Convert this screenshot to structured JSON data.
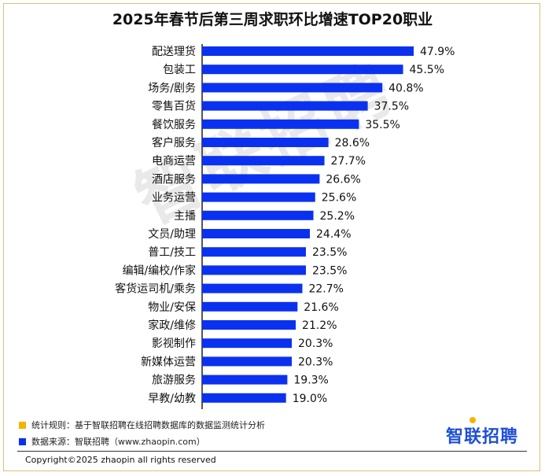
{
  "chart_data": {
    "type": "bar",
    "orientation": "horizontal",
    "title": "2025年春节后第三周求职环比增速TOP20职业",
    "categories": [
      "配送理货",
      "包装工",
      "场务/剧务",
      "零售百货",
      "餐饮服务",
      "客户服务",
      "电商运营",
      "酒店服务",
      "业务运营",
      "主播",
      "文员/助理",
      "普工/技工",
      "编辑/编校/作家",
      "客货运司机/乘务",
      "物业/安保",
      "家政/维修",
      "影视制作",
      "新媒体运营",
      "旅游服务",
      "早教/幼教"
    ],
    "values": [
      47.9,
      45.5,
      40.8,
      37.5,
      35.5,
      28.6,
      27.7,
      26.6,
      25.6,
      25.2,
      24.4,
      23.5,
      23.5,
      22.7,
      21.6,
      21.2,
      20.3,
      20.3,
      19.3,
      19.0
    ],
    "value_labels": [
      "47.9%",
      "45.5%",
      "40.8%",
      "37.5%",
      "35.5%",
      "28.6%",
      "27.7%",
      "26.6%",
      "25.6%",
      "25.2%",
      "24.4%",
      "23.5%",
      "23.5%",
      "22.7%",
      "21.6%",
      "21.2%",
      "20.3%",
      "20.3%",
      "19.3%",
      "19.0%"
    ],
    "xlim": [
      0,
      48
    ],
    "bar_color": "#0b31f0",
    "grid": false
  },
  "notes": [
    {
      "text": "统计规则：基于智联招聘在线招聘数据库的数据监测统计分析",
      "color": "#f2b400"
    },
    {
      "text": "数据来源：智联招聘（www.zhaopin.com）",
      "color": "#0b31f0"
    }
  ],
  "brand": "智联招聘",
  "watermark": "智联招聘",
  "copyright": "Copyright©2025 zhaopin all rights reserved"
}
